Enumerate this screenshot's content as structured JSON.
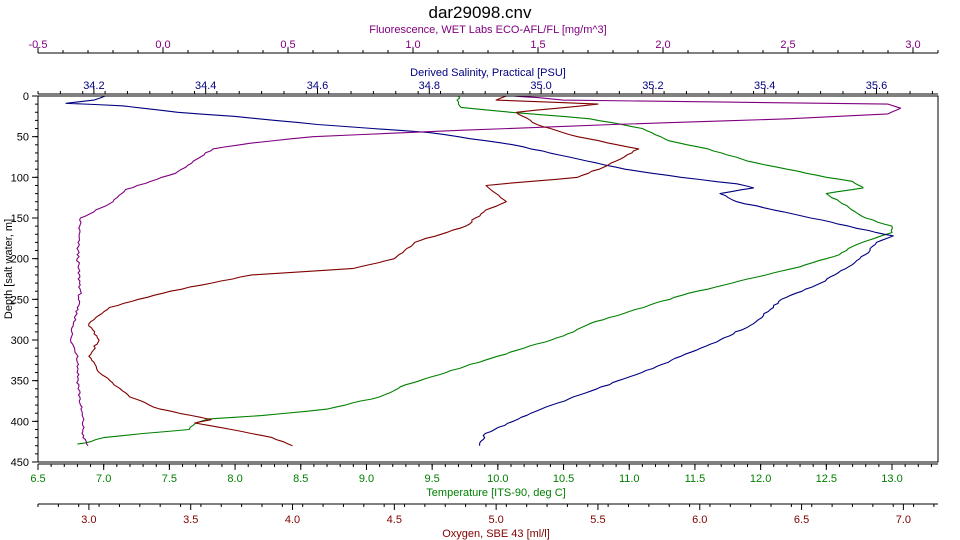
{
  "chart_data": {
    "type": "line",
    "title": "dar29098.cnv",
    "y_axis": {
      "label": "Depth [salt water, m]",
      "range": [
        0,
        450
      ],
      "ticks": [
        0,
        50,
        100,
        150,
        200,
        250,
        300,
        350,
        400,
        450
      ],
      "inverted": true,
      "color": "#000000"
    },
    "x_axes": [
      {
        "id": "fluorescence",
        "label": "Fluorescence, WET Labs ECO-AFL/FL [mg/m^3]",
        "position": "top",
        "color": "#800080",
        "range": [
          -0.5,
          3.1
        ],
        "ticks": [
          -0.5,
          0.0,
          0.5,
          1.0,
          1.5,
          2.0,
          2.5,
          3.0
        ],
        "tick_labels": [
          "-0.5",
          "0.0",
          "0.5",
          "1.0",
          "1.5",
          "2.0",
          "2.5",
          "3.0"
        ]
      },
      {
        "id": "salinity",
        "label": "Derived Salinity, Practical [PSU]",
        "position": "top",
        "color": "#000080",
        "range": [
          34.1,
          35.71
        ],
        "ticks": [
          34.2,
          34.4,
          34.6,
          34.8,
          35.0,
          35.2,
          35.4,
          35.6
        ],
        "tick_labels": [
          "34.2",
          "34.4",
          "34.6",
          "34.8",
          "35.0",
          "35.2",
          "35.4",
          "35.6"
        ]
      },
      {
        "id": "temperature",
        "label": "Temperature [ITS-90, deg C]",
        "position": "bottom",
        "color": "#008000",
        "range": [
          6.5,
          13.35
        ],
        "ticks": [
          6.5,
          7.0,
          7.5,
          8.0,
          8.5,
          9.0,
          9.5,
          10.0,
          10.5,
          11.0,
          11.5,
          12.0,
          12.5,
          13.0
        ],
        "tick_labels": [
          "6.5",
          "7.0",
          "7.5",
          "8.0",
          "8.5",
          "9.0",
          "9.5",
          "10.0",
          "10.5",
          "11.0",
          "11.5",
          "12.0",
          "12.5",
          "13.0"
        ]
      },
      {
        "id": "oxygen",
        "label": "Oxygen, SBE 43 [ml/l]",
        "position": "bottom",
        "color": "#800000",
        "range": [
          2.75,
          7.17
        ],
        "ticks": [
          3.0,
          3.5,
          4.0,
          4.5,
          5.0,
          5.5,
          6.0,
          6.5,
          7.0
        ],
        "tick_labels": [
          "3.0",
          "3.5",
          "4.0",
          "4.5",
          "5.0",
          "5.5",
          "6.0",
          "6.5",
          "7.0"
        ]
      }
    ],
    "series": [
      {
        "axis": "temperature",
        "color": "#008000",
        "points": [
          [
            9.7,
            0
          ],
          [
            9.7,
            10
          ],
          [
            9.72,
            14
          ],
          [
            10.1,
            20
          ],
          [
            10.7,
            28
          ],
          [
            11.1,
            40
          ],
          [
            11.3,
            55
          ],
          [
            11.6,
            65
          ],
          [
            11.7,
            70
          ],
          [
            11.9,
            80
          ],
          [
            12.2,
            90
          ],
          [
            12.5,
            100
          ],
          [
            12.7,
            105
          ],
          [
            12.75,
            110
          ],
          [
            12.78,
            113
          ],
          [
            12.5,
            120
          ],
          [
            12.6,
            130
          ],
          [
            12.8,
            150
          ],
          [
            13.0,
            160
          ],
          [
            13.0,
            168
          ],
          [
            12.9,
            173
          ],
          [
            12.7,
            185
          ],
          [
            12.6,
            195
          ],
          [
            12.3,
            210
          ],
          [
            11.9,
            225
          ],
          [
            11.4,
            245
          ],
          [
            11.0,
            265
          ],
          [
            10.7,
            280
          ],
          [
            10.5,
            295
          ],
          [
            10.2,
            310
          ],
          [
            9.9,
            325
          ],
          [
            9.5,
            345
          ],
          [
            9.3,
            355
          ],
          [
            9.1,
            370
          ],
          [
            8.7,
            385
          ],
          [
            8.2,
            393
          ],
          [
            7.8,
            397
          ],
          [
            7.7,
            402
          ],
          [
            7.65,
            410
          ],
          [
            7.3,
            415
          ],
          [
            7.0,
            420
          ],
          [
            6.9,
            425
          ],
          [
            6.8,
            428
          ]
        ]
      },
      {
        "axis": "salinity",
        "color": "#000080",
        "points": [
          [
            34.22,
            0
          ],
          [
            34.2,
            5
          ],
          [
            34.15,
            9
          ],
          [
            34.25,
            12
          ],
          [
            34.35,
            20
          ],
          [
            34.45,
            25
          ],
          [
            34.6,
            35
          ],
          [
            34.8,
            45
          ],
          [
            34.95,
            60
          ],
          [
            35.05,
            75
          ],
          [
            35.15,
            90
          ],
          [
            35.25,
            100
          ],
          [
            35.35,
            108
          ],
          [
            35.38,
            113
          ],
          [
            35.32,
            120
          ],
          [
            35.35,
            130
          ],
          [
            35.45,
            145
          ],
          [
            35.55,
            160
          ],
          [
            35.6,
            168
          ],
          [
            35.63,
            172
          ],
          [
            35.6,
            180
          ],
          [
            35.58,
            195
          ],
          [
            35.55,
            210
          ],
          [
            35.5,
            230
          ],
          [
            35.43,
            250
          ],
          [
            35.38,
            280
          ],
          [
            35.32,
            300
          ],
          [
            35.25,
            320
          ],
          [
            35.2,
            335
          ],
          [
            35.1,
            360
          ],
          [
            35.0,
            385
          ],
          [
            34.95,
            400
          ],
          [
            34.9,
            415
          ],
          [
            34.89,
            430
          ]
        ]
      },
      {
        "axis": "fluorescence",
        "color": "#800080",
        "points": [
          [
            1.4,
            0
          ],
          [
            1.5,
            2
          ],
          [
            1.6,
            5
          ],
          [
            2.9,
            10
          ],
          [
            2.95,
            15
          ],
          [
            2.9,
            22
          ],
          [
            2.5,
            28
          ],
          [
            1.8,
            35
          ],
          [
            1.2,
            42
          ],
          [
            0.6,
            50
          ],
          [
            0.35,
            58
          ],
          [
            0.2,
            65
          ],
          [
            0.15,
            75
          ],
          [
            0.1,
            85
          ],
          [
            0.05,
            95
          ],
          [
            -0.05,
            105
          ],
          [
            -0.15,
            115
          ],
          [
            -0.2,
            130
          ],
          [
            -0.33,
            150
          ],
          [
            -0.34,
            180
          ],
          [
            -0.34,
            210
          ],
          [
            -0.33,
            240
          ],
          [
            -0.35,
            270
          ],
          [
            -0.37,
            300
          ],
          [
            -0.34,
            320
          ],
          [
            -0.34,
            350
          ],
          [
            -0.33,
            380
          ],
          [
            -0.32,
            400
          ],
          [
            -0.32,
            420
          ],
          [
            -0.3,
            430
          ]
        ]
      },
      {
        "axis": "oxygen",
        "color": "#800000",
        "points": [
          [
            5.05,
            0
          ],
          [
            5.0,
            5
          ],
          [
            5.5,
            10
          ],
          [
            5.1,
            20
          ],
          [
            5.2,
            35
          ],
          [
            5.4,
            50
          ],
          [
            5.7,
            65
          ],
          [
            5.55,
            85
          ],
          [
            5.4,
            100
          ],
          [
            4.95,
            110
          ],
          [
            5.0,
            120
          ],
          [
            5.05,
            130
          ],
          [
            4.95,
            140
          ],
          [
            4.85,
            160
          ],
          [
            4.6,
            180
          ],
          [
            4.5,
            200
          ],
          [
            4.3,
            212
          ],
          [
            3.8,
            220
          ],
          [
            3.4,
            240
          ],
          [
            3.1,
            260
          ],
          [
            3.0,
            280
          ],
          [
            3.05,
            300
          ],
          [
            3.0,
            320
          ],
          [
            3.05,
            340
          ],
          [
            3.2,
            370
          ],
          [
            3.35,
            385
          ],
          [
            3.6,
            398
          ],
          [
            3.52,
            402
          ],
          [
            3.7,
            410
          ],
          [
            3.9,
            420
          ],
          [
            4.0,
            430
          ]
        ]
      }
    ]
  }
}
